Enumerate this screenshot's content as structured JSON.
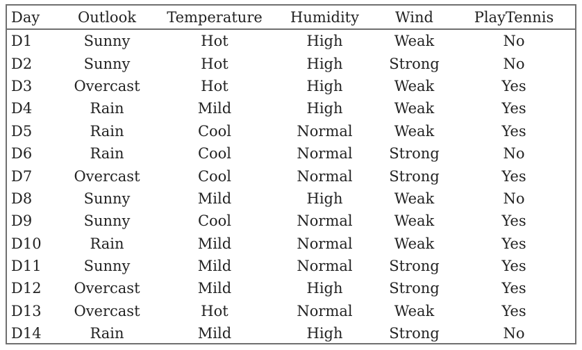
{
  "table": {
    "headers": [
      "Day",
      "Outlook",
      "Temperature",
      "Humidity",
      "Wind",
      "PlayTennis"
    ],
    "rows": [
      [
        "D1",
        "Sunny",
        "Hot",
        "High",
        "Weak",
        "No"
      ],
      [
        "D2",
        "Sunny",
        "Hot",
        "High",
        "Strong",
        "No"
      ],
      [
        "D3",
        "Overcast",
        "Hot",
        "High",
        "Weak",
        "Yes"
      ],
      [
        "D4",
        "Rain",
        "Mild",
        "High",
        "Weak",
        "Yes"
      ],
      [
        "D5",
        "Rain",
        "Cool",
        "Normal",
        "Weak",
        "Yes"
      ],
      [
        "D6",
        "Rain",
        "Cool",
        "Normal",
        "Strong",
        "No"
      ],
      [
        "D7",
        "Overcast",
        "Cool",
        "Normal",
        "Strong",
        "Yes"
      ],
      [
        "D8",
        "Sunny",
        "Mild",
        "High",
        "Weak",
        "No"
      ],
      [
        "D9",
        "Sunny",
        "Cool",
        "Normal",
        "Weak",
        "Yes"
      ],
      [
        "D10",
        "Rain",
        "Mild",
        "Normal",
        "Weak",
        "Yes"
      ],
      [
        "D11",
        "Sunny",
        "Mild",
        "Normal",
        "Strong",
        "Yes"
      ],
      [
        "D12",
        "Overcast",
        "Mild",
        "High",
        "Strong",
        "Yes"
      ],
      [
        "D13",
        "Overcast",
        "Hot",
        "Normal",
        "Weak",
        "Yes"
      ],
      [
        "D14",
        "Rain",
        "Mild",
        "High",
        "Strong",
        "No"
      ]
    ]
  }
}
